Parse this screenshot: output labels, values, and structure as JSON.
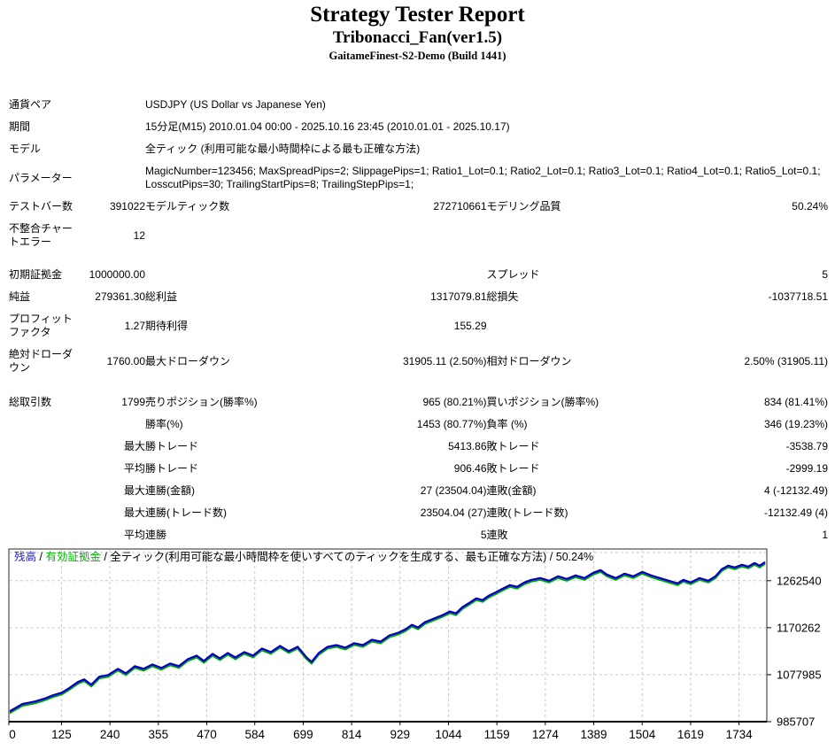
{
  "header": {
    "title": "Strategy Tester Report",
    "strategy": "Tribonacci_Fan(ver1.5)",
    "server": "GaitameFinest-S2-Demo (Build 1441)"
  },
  "table": {
    "rows": [
      {
        "l1": "通貨ペア",
        "wide": "USDJPY (US Dollar vs Japanese Yen)"
      },
      {
        "l1": "期間",
        "wide": "15分足(M15) 2010.01.04 00:00 - 2025.10.16 23:45 (2010.01.01 - 2025.10.17)"
      },
      {
        "l1": "モデル",
        "wide": "全ティック (利用可能な最小時間枠による最も正確な方法)"
      },
      {
        "l1": "パラメーター",
        "wide": "MagicNumber=123456; MaxSpreadPips=2; SlippagePips=1; Ratio1_Lot=0.1; Ratio2_Lot=0.1; Ratio3_Lot=0.1; Ratio4_Lot=0.1; Ratio5_Lot=0.1; LosscutPips=30; TrailingStartPips=8; TrailingStepPips=1;"
      },
      {
        "l1": "テストバー数",
        "v1": "391022",
        "l2": "モデルティック数",
        "v2": "272710661",
        "l3": "モデリング品質",
        "v3": "50.24%"
      },
      {
        "l1": "不整合チャートエラー",
        "v1": "12",
        "l2": "",
        "v2": "",
        "l3": "",
        "v3": ""
      },
      {
        "spacer": 12
      },
      {
        "l1": "初期証拠金",
        "v1": "1000000.00",
        "l2": "",
        "v2": "",
        "l3": "スプレッド",
        "v3": "5"
      },
      {
        "l1": "純益",
        "v1": "279361.30",
        "l2": "総利益",
        "v2": "1317079.81",
        "l3": "総損失",
        "v3": "-1037718.51"
      },
      {
        "l1": "プロフィットファクタ",
        "v1": "1.27",
        "l2": "期待利得",
        "v2": "155.29",
        "l3": "",
        "v3": ""
      },
      {
        "l1": "絶対ドローダウン",
        "v1": "1760.00",
        "l2": "最大ドローダウン",
        "v2": "31905.11 (2.50%)",
        "l3": "相対ドローダウン",
        "v3": "2.50% (31905.11)"
      },
      {
        "spacer": 14
      },
      {
        "l1": "総取引数",
        "v1": "1799",
        "l2": "売りポジション(勝率%)",
        "v2": "965 (80.21%)",
        "l3": "買いポジション(勝率%)",
        "v3": "834 (81.41%)"
      },
      {
        "l1": "",
        "v1": "",
        "l2": "勝率(%)",
        "v2": "1453 (80.77%)",
        "l3": "負率 (%)",
        "v3": "346 (19.23%)"
      },
      {
        "l1": "",
        "v1": "最大",
        "l2": "勝トレード",
        "v2": "5413.86",
        "l3": "敗トレード",
        "v3": "-3538.79"
      },
      {
        "l1": "",
        "v1": "平均",
        "l2": "勝トレード",
        "v2": "906.46",
        "l3": "敗トレード",
        "v3": "-2999.19"
      },
      {
        "l1": "",
        "v1": "最大",
        "l2": "連勝(金額)",
        "v2": "27 (23504.04)",
        "l3": "連敗(金額)",
        "v3": "4 (-12132.49)"
      },
      {
        "l1": "",
        "v1": "最大",
        "l2": "連勝(トレード数)",
        "v2": "23504.04 (27)",
        "l3": "連敗(トレード数)",
        "v3": "-12132.49 (4)"
      },
      {
        "l1": "",
        "v1": "平均",
        "l2": "連勝",
        "v2": "5",
        "l3": "連敗",
        "v3": "1"
      }
    ]
  },
  "chart_data": {
    "type": "line",
    "legend": [
      {
        "text": "残高",
        "color": "#2222cc"
      },
      {
        "text": "有効証拠金",
        "color": "#00b400"
      },
      {
        "text": "全ティック(利用可能な最小時間枠を使いすべてのティックを生成する、最も正確な方法) / 50.24%",
        "color": "#000000"
      }
    ],
    "legend_separator": " / ",
    "xlabel": "",
    "ylabel": "",
    "x_ticks": [
      0,
      125,
      240,
      355,
      470,
      584,
      699,
      814,
      929,
      1044,
      1159,
      1274,
      1389,
      1504,
      1619,
      1734
    ],
    "y_ticks": [
      985707,
      1077985,
      1170262,
      1262540
    ],
    "x_range": [
      0,
      1800
    ],
    "y_range": [
      985707,
      1324800
    ],
    "grid": true,
    "line_colors": {
      "balance": "#0000c8",
      "equity": "#00a000"
    },
    "series": [
      {
        "name": "残高",
        "points": [
          [
            0,
            1005000
          ],
          [
            32,
            1020300
          ],
          [
            63,
            1025500
          ],
          [
            84,
            1030700
          ],
          [
            105,
            1037600
          ],
          [
            126,
            1042800
          ],
          [
            143,
            1051500
          ],
          [
            164,
            1063600
          ],
          [
            179,
            1068800
          ],
          [
            196,
            1058400
          ],
          [
            215,
            1074000
          ],
          [
            236,
            1077400
          ],
          [
            259,
            1089500
          ],
          [
            278,
            1080900
          ],
          [
            299,
            1094700
          ],
          [
            320,
            1089500
          ],
          [
            341,
            1098100
          ],
          [
            362,
            1091200
          ],
          [
            383,
            1099900
          ],
          [
            404,
            1094700
          ],
          [
            425,
            1108500
          ],
          [
            446,
            1115400
          ],
          [
            463,
            1105000
          ],
          [
            484,
            1118900
          ],
          [
            501,
            1110300
          ],
          [
            520,
            1120600
          ],
          [
            538,
            1112000
          ],
          [
            559,
            1122400
          ],
          [
            580,
            1115400
          ],
          [
            601,
            1129300
          ],
          [
            622,
            1122400
          ],
          [
            644,
            1134500
          ],
          [
            665,
            1124100
          ],
          [
            686,
            1132800
          ],
          [
            707,
            1112000
          ],
          [
            719,
            1103300
          ],
          [
            736,
            1120600
          ],
          [
            757,
            1132800
          ],
          [
            778,
            1136200
          ],
          [
            799,
            1131000
          ],
          [
            820,
            1139700
          ],
          [
            841,
            1136200
          ],
          [
            862,
            1146600
          ],
          [
            883,
            1143100
          ],
          [
            904,
            1155200
          ],
          [
            925,
            1160400
          ],
          [
            942,
            1167300
          ],
          [
            957,
            1176000
          ],
          [
            972,
            1170800
          ],
          [
            988,
            1181200
          ],
          [
            1009,
            1188100
          ],
          [
            1030,
            1195000
          ],
          [
            1047,
            1202000
          ],
          [
            1062,
            1198500
          ],
          [
            1077,
            1210600
          ],
          [
            1094,
            1219300
          ],
          [
            1110,
            1227900
          ],
          [
            1125,
            1224500
          ],
          [
            1140,
            1233100
          ],
          [
            1157,
            1240100
          ],
          [
            1173,
            1247000
          ],
          [
            1190,
            1253900
          ],
          [
            1207,
            1250500
          ],
          [
            1224,
            1259100
          ],
          [
            1241,
            1264300
          ],
          [
            1262,
            1267800
          ],
          [
            1283,
            1262500
          ],
          [
            1304,
            1271200
          ],
          [
            1325,
            1266000
          ],
          [
            1346,
            1272900
          ],
          [
            1367,
            1267800
          ],
          [
            1388,
            1278200
          ],
          [
            1405,
            1283400
          ],
          [
            1420,
            1274700
          ],
          [
            1441,
            1267800
          ],
          [
            1462,
            1276400
          ],
          [
            1483,
            1271200
          ],
          [
            1504,
            1279900
          ],
          [
            1525,
            1272900
          ],
          [
            1546,
            1267800
          ],
          [
            1567,
            1262500
          ],
          [
            1588,
            1257300
          ],
          [
            1602,
            1264300
          ],
          [
            1619,
            1259100
          ],
          [
            1640,
            1267800
          ],
          [
            1661,
            1262500
          ],
          [
            1678,
            1271200
          ],
          [
            1693,
            1285100
          ],
          [
            1708,
            1292100
          ],
          [
            1724,
            1288600
          ],
          [
            1741,
            1293800
          ],
          [
            1756,
            1290300
          ],
          [
            1771,
            1297300
          ],
          [
            1783,
            1292100
          ],
          [
            1796,
            1299000
          ]
        ]
      }
    ]
  }
}
